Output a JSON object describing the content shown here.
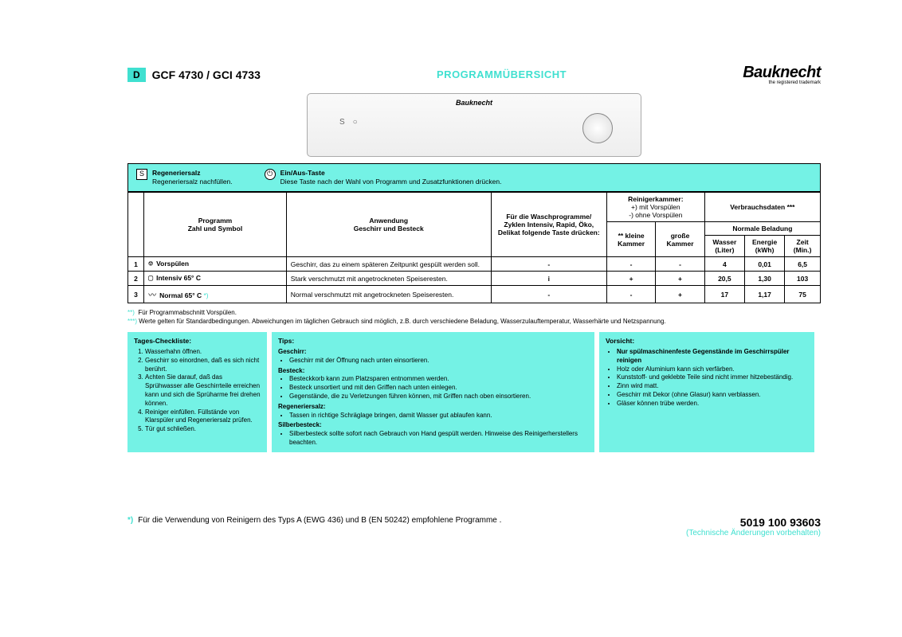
{
  "header": {
    "badge": "D",
    "model": "GCF 4730 / GCI 4733",
    "title": "PROGRAMMÜBERSICHT",
    "brand": "Bauknecht",
    "brand_sub": "the registered trademark"
  },
  "legend": {
    "salt_title": "Regeneriersalz",
    "salt_text": "Regeneriersalz nachfüllen.",
    "onoff_title": "Ein/Aus-Taste",
    "onoff_text": "Diese Taste nach der Wahl von Programm und Zusatzfunktionen drücken."
  },
  "table": {
    "col_program": "Programm\nZahl und Symbol",
    "col_usage": "Anwendung\nGeschirr und Besteck",
    "col_wash": "Für die Waschprogramme/ Zyklen Intensiv, Rapid, Öko, Delikat folgende Taste drücken:",
    "col_deterg": "Reinigerkammer:",
    "col_deterg_sub1": "+) mit Vorspülen",
    "col_deterg_sub2": "-) ohne Vorspülen",
    "col_small": "** kleine Kammer",
    "col_large": "große Kammer",
    "col_consume": "Verbrauchsdaten ***",
    "col_load": "Normale Beladung",
    "col_water": "Wasser (Liter)",
    "col_energy": "Energie (kWh)",
    "col_time": "Zeit (Min.)",
    "rows": [
      {
        "n": "1",
        "name": "Vorspülen",
        "sym": "⎊",
        "desc": "Geschirr, das zu einem späteren Zeitpunkt gespült werden soll.",
        "btn": "-",
        "small": "-",
        "large": "-",
        "water": "4",
        "energy": "0,01",
        "time": "6,5"
      },
      {
        "n": "2",
        "name": "Intensiv 65° C",
        "sym": "▢",
        "desc": "Stark verschmutzt mit angetrockneten Speiseresten.",
        "btn": "i",
        "small": "+",
        "large": "+",
        "water": "20,5",
        "energy": "1,30",
        "time": "103"
      },
      {
        "n": "3",
        "name": "Normal 65° C",
        "sym": "〰",
        "star": "*)",
        "desc": "Normal verschmutzt mit angetrockneten Speiseresten.",
        "btn": "-",
        "small": "-",
        "large": "+",
        "water": "17",
        "energy": "1,17",
        "time": "75"
      }
    ]
  },
  "footnotes": {
    "f2": "Für Programmabschnitt Vorspülen.",
    "f3": "Werte gelten für Standardbedingungen. Abweichungen im täglichen Gebrauch sind möglich, z.B. durch verschiedene Beladung, Wasserzulauftemperatur, Wasserhärte und Netzspannung."
  },
  "checklist": {
    "title": "Tages-Checkliste:",
    "items": [
      "Wasserhahn öffnen.",
      "Geschirr so einordnen, daß es sich nicht berührt.",
      "Achten Sie darauf, daß das Sprühwasser alle Geschirrteile erreichen kann und sich die Sprüharme frei drehen können.",
      "Reiniger einfüllen. Füllstände von Klarspüler und Regeneriersalz prüfen.",
      "Tür gut schließen."
    ]
  },
  "tips": {
    "title": "Tips:",
    "geschirr_h": "Geschirr:",
    "geschirr": [
      "Geschirr mit der Öffnung nach unten einsortieren."
    ],
    "besteck_h": "Besteck:",
    "besteck": [
      "Besteckkorb kann zum Platzsparen entnommen werden.",
      "Besteck unsortiert und mit den Griffen nach unten einlegen.",
      "Gegenstände, die zu Verletzungen führen können, mit Griffen nach oben einsortieren."
    ],
    "salz_h": "Regeneriersalz:",
    "salz": [
      "Tassen in richtige Schräglage bringen, damit Wasser gut ablaufen kann."
    ],
    "silber_h": "Silberbesteck:",
    "silber": [
      "Silberbesteck sollte sofort nach Gebrauch von Hand gespült werden. Hinweise des Reinigerherstellers beachten."
    ]
  },
  "caution": {
    "title": "Vorsicht:",
    "strong": "Nur spülmaschinenfeste Gegenstände im Geschirrspüler reinigen",
    "items": [
      "Holz oder Aluminium kann sich verfärben.",
      "Kunststoff- und geklebte Teile sind nicht immer hitzebeständig.",
      "Zinn wird matt.",
      "Geschirr mit Dekor (ohne Glasur) kann verblassen.",
      "Gläser können trübe werden."
    ]
  },
  "footer": {
    "note": "Für die Verwendung von Reinigern des Typs A (EWG 436) und B (EN 50242) empfohlene Programme .",
    "partno": "5019 100 93603",
    "disclaimer": "(Technische Änderungen vorbehalten)"
  },
  "colors": {
    "accent": "#40e0d0",
    "box_bg": "#74f2e5"
  }
}
